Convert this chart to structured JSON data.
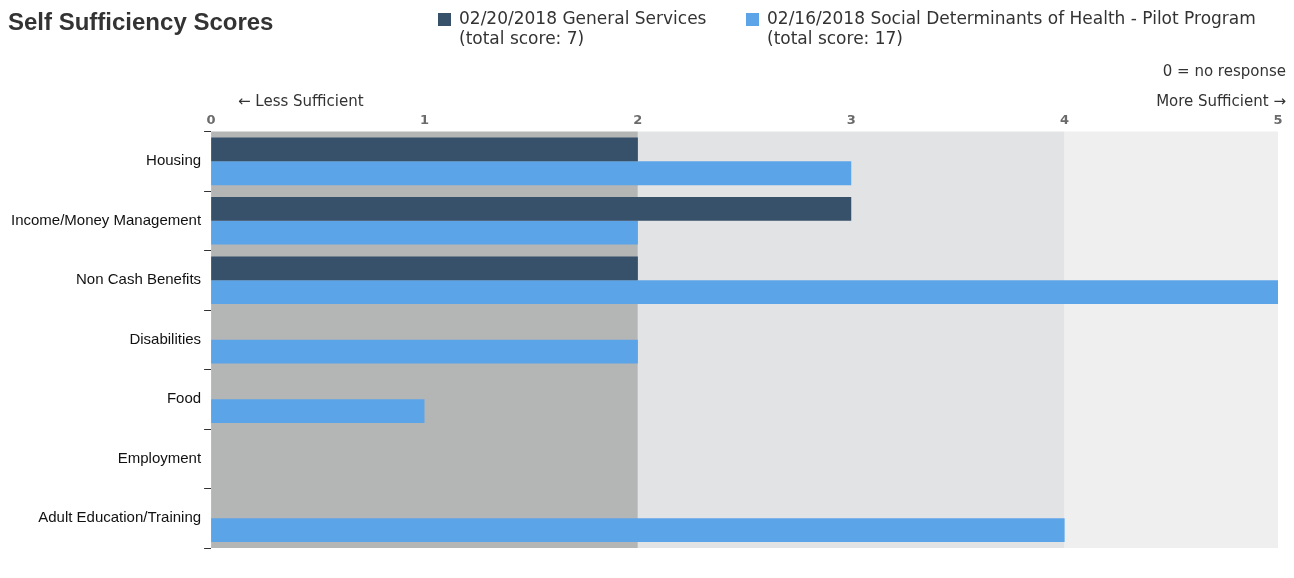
{
  "chart_data": {
    "type": "bar",
    "orientation": "horizontal",
    "title": "Self Sufficiency Scores",
    "categories": [
      "Housing",
      "Income/Money Management",
      "Non Cash Benefits",
      "Disabilities",
      "Food",
      "Employment",
      "Adult Education/Training"
    ],
    "series": [
      {
        "name": "02/20/2018 General Services (total score: 7)",
        "color": "#37516a",
        "values": [
          2,
          3,
          2,
          0,
          0,
          0,
          0
        ]
      },
      {
        "name": "02/16/2018 Social Determinants of Health - Pilot Program (total score: 17)",
        "color": "#5ca4e8",
        "values": [
          3,
          2,
          5,
          2,
          1,
          0,
          4
        ]
      }
    ],
    "xlim": [
      0,
      5
    ],
    "xticks": [
      0,
      1,
      2,
      3,
      4,
      5
    ],
    "bands": [
      {
        "axis": "x",
        "from": 0,
        "to": 2,
        "color": "#b4b5b5"
      },
      {
        "axis": "x",
        "from": 2,
        "to": 4,
        "color": "#e2e3e4"
      },
      {
        "axis": "x",
        "from": 4,
        "to": 5,
        "color": "#efefef"
      }
    ],
    "annotations": [
      "0 = no response",
      "← Less Sufficient",
      "More Sufficient →"
    ],
    "legend": "top right",
    "grid": false
  }
}
